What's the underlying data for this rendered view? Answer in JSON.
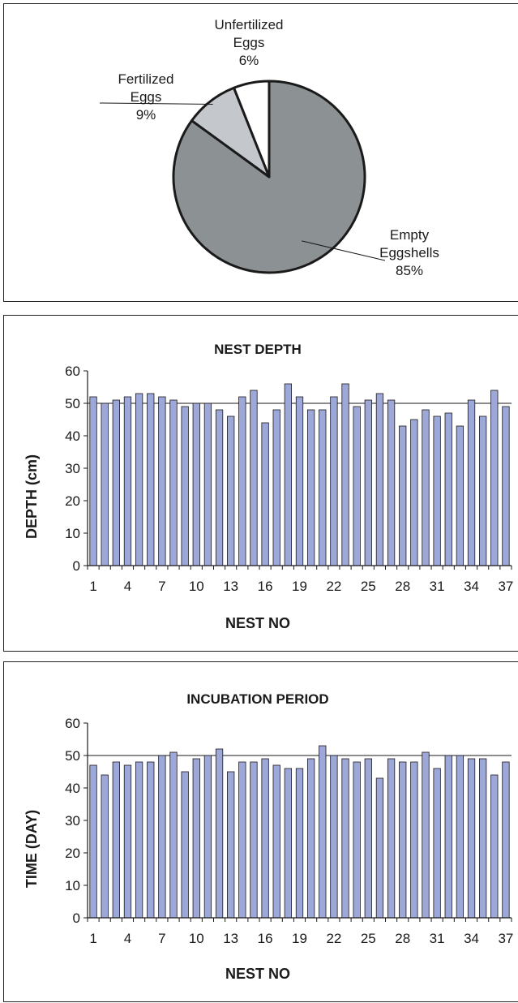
{
  "chart_data": [
    {
      "type": "pie",
      "slices": [
        {
          "name": "Empty Eggshells",
          "label_lines": [
            "Empty",
            "Eggshells"
          ],
          "value": 85,
          "pct_label": "85%",
          "color": "#8c9194"
        },
        {
          "name": "Fertilized Eggs",
          "label_lines": [
            "Fertilized",
            "Eggs"
          ],
          "value": 9,
          "pct_label": "9%",
          "color": "#c4c7cb"
        },
        {
          "name": "Unfertilized Eggs",
          "label_lines": [
            "Unfertilized",
            "Eggs"
          ],
          "value": 6,
          "pct_label": "6%",
          "color": "#ffffff"
        }
      ]
    },
    {
      "type": "bar",
      "title": "NEST DEPTH",
      "xlabel": "NEST NO",
      "ylabel": "DEPTH (cm)",
      "ylim": [
        0,
        60
      ],
      "yticks": [
        0,
        10,
        20,
        30,
        40,
        50,
        60
      ],
      "x": [
        1,
        2,
        3,
        4,
        5,
        6,
        7,
        8,
        9,
        10,
        11,
        12,
        13,
        14,
        15,
        16,
        17,
        18,
        19,
        20,
        21,
        22,
        23,
        24,
        25,
        26,
        27,
        28,
        29,
        30,
        31,
        32,
        33,
        34,
        35,
        36,
        37
      ],
      "xtick_labels": [
        "1",
        "4",
        "7",
        "10",
        "13",
        "16",
        "19",
        "22",
        "25",
        "28",
        "31",
        "34",
        "37"
      ],
      "values": [
        52,
        50,
        51,
        52,
        53,
        53,
        52,
        51,
        49,
        50,
        50,
        48,
        46,
        52,
        54,
        44,
        48,
        56,
        52,
        48,
        48,
        52,
        56,
        49,
        51,
        53,
        51,
        43,
        45,
        48,
        46,
        47,
        43,
        51,
        46,
        54,
        49
      ],
      "bar_color": "#9da7d8",
      "grid": "horizontal"
    },
    {
      "type": "bar",
      "title": "INCUBATION PERIOD",
      "xlabel": "NEST NO",
      "ylabel": "TIME (DAY)",
      "ylim": [
        0,
        60
      ],
      "yticks": [
        0,
        10,
        20,
        30,
        40,
        50,
        60
      ],
      "x": [
        1,
        2,
        3,
        4,
        5,
        6,
        7,
        8,
        9,
        10,
        11,
        12,
        13,
        14,
        15,
        16,
        17,
        18,
        19,
        20,
        21,
        22,
        23,
        24,
        25,
        26,
        27,
        28,
        29,
        30,
        31,
        32,
        33,
        34,
        35,
        36,
        37
      ],
      "xtick_labels": [
        "1",
        "4",
        "7",
        "10",
        "13",
        "16",
        "19",
        "22",
        "25",
        "28",
        "31",
        "34",
        "37"
      ],
      "values": [
        47,
        44,
        48,
        47,
        48,
        48,
        50,
        51,
        45,
        49,
        50,
        52,
        45,
        48,
        48,
        49,
        47,
        46,
        46,
        49,
        53,
        50,
        49,
        48,
        49,
        43,
        49,
        48,
        48,
        51,
        46,
        50,
        50,
        49,
        49,
        44,
        48
      ],
      "bar_color": "#9da7d8",
      "grid": "horizontal"
    }
  ]
}
